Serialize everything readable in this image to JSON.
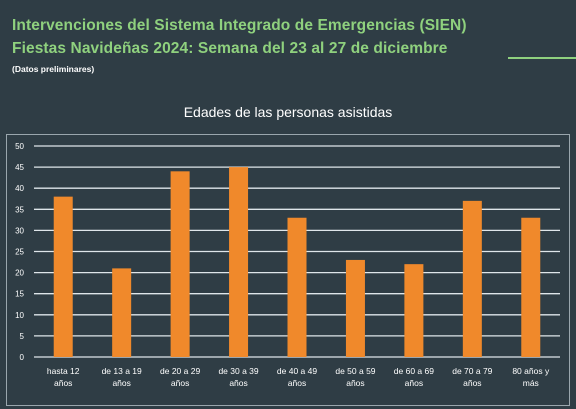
{
  "header": {
    "line1": "Intervenciones del Sistema Integrado de Emergencias (SIEN)",
    "line2": "Fiestas Navideñas 2024: Semana del 23 al 27 de diciembre",
    "note": "(Datos preliminares)"
  },
  "colors": {
    "background": "#2f3d45",
    "title_green": "#8fd17e",
    "bar": "#f0892b",
    "grid": "#dfe6ea",
    "text": "#ffffff"
  },
  "chart_data": {
    "type": "bar",
    "title": "Edades de las personas asistidas",
    "categories": [
      [
        "hasta 12",
        "años"
      ],
      [
        "de 13 a 19",
        "años"
      ],
      [
        "de 20 a 29",
        "años"
      ],
      [
        "de 30 a 39",
        "años"
      ],
      [
        "de 40 a 49",
        "años"
      ],
      [
        "de 50 a 59",
        "años"
      ],
      [
        "de 60 a 69",
        "años"
      ],
      [
        "de 70 a 79",
        "años"
      ],
      [
        "80 años y",
        "más"
      ]
    ],
    "values": [
      38,
      21,
      44,
      45,
      33,
      23,
      22,
      37,
      33
    ],
    "ylim": [
      0,
      50
    ],
    "yticks": [
      0,
      5,
      10,
      15,
      20,
      25,
      30,
      35,
      40,
      45,
      50
    ],
    "grid": true,
    "legend": "none"
  }
}
